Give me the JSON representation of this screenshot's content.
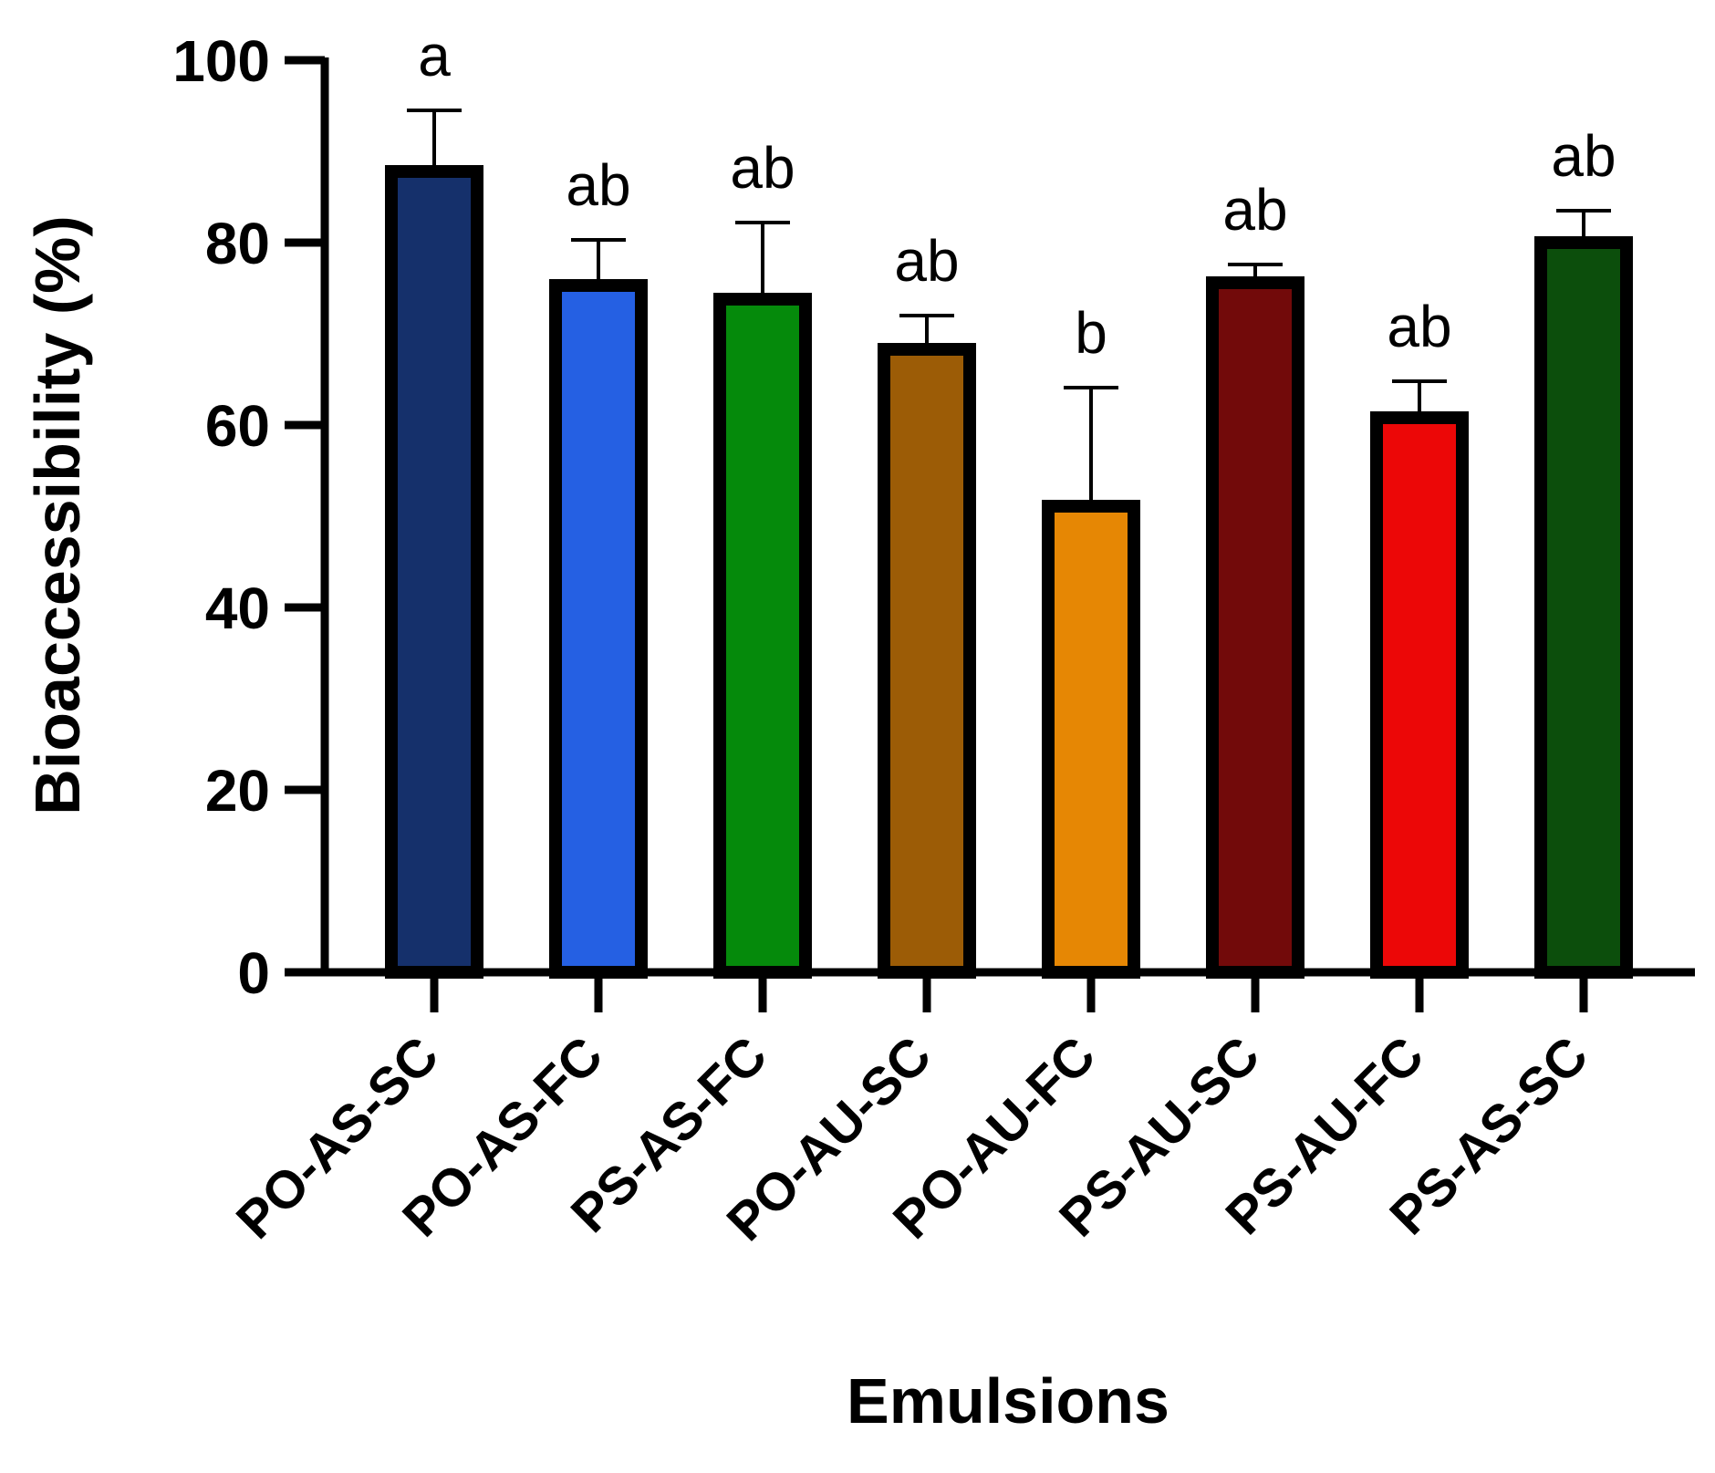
{
  "chart_data": {
    "type": "bar",
    "xlabel": "Emulsions",
    "ylabel": "Bioaccessibility (%)",
    "ylim": [
      0,
      100
    ],
    "yticks": [
      0,
      20,
      40,
      60,
      80,
      100
    ],
    "ytick_labels": [
      "0",
      "20",
      "40",
      "60",
      "80",
      "100"
    ],
    "categories": [
      "PO-AS-SC",
      "PO-AS-FC",
      "PS-AS-FC",
      "PO-AU-SC",
      "PO-AU-FC",
      "PS-AU-SC",
      "PS-AU-FC",
      "PS-AS-SC"
    ],
    "values": [
      88.5,
      76.0,
      74.5,
      69.0,
      51.8,
      76.3,
      61.5,
      80.7
    ],
    "errors": [
      6.0,
      4.3,
      7.7,
      3.0,
      12.3,
      1.3,
      3.3,
      2.8
    ],
    "significance": [
      "a",
      "ab",
      "ab",
      "ab",
      "b",
      "ab",
      "ab",
      "ab"
    ],
    "colors": [
      "#15306b",
      "#2560e3",
      "#058a0b",
      "#9c5c06",
      "#e68704",
      "#720a0a",
      "#ec0707",
      "#0c4e0c"
    ],
    "outline_color": "#000000",
    "grid": false,
    "legend": "none"
  }
}
